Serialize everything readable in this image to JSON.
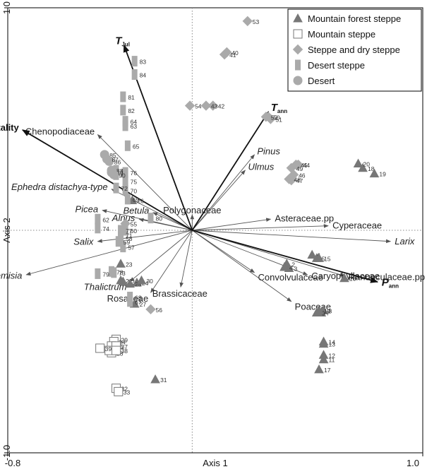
{
  "chart_data": {
    "type": "scatter",
    "subtype": "ordination-biplot",
    "xlabel": "Axis 1",
    "ylabel": "Axis 2",
    "xlim": [
      -0.8,
      1.0
    ],
    "ylim": [
      -1.0,
      1.0
    ],
    "x_ticks": [
      {
        "v": -0.8,
        "label": "-0.8"
      },
      {
        "v": 1.0,
        "label": "1.0"
      }
    ],
    "y_ticks": [
      {
        "v": 1.0,
        "label": "1.0"
      },
      {
        "v": -1.0,
        "label": "-1.0"
      }
    ],
    "grid": false,
    "zero_lines": true,
    "legend_position": "top-right",
    "legend": [
      {
        "group": "mfs",
        "label": "Mountain forest steppe"
      },
      {
        "group": "ms",
        "label": "Mountain steppe"
      },
      {
        "group": "sds",
        "label": "Steppe and dry steppe"
      },
      {
        "group": "ds",
        "label": "Desert steppe"
      },
      {
        "group": "d",
        "label": "Desert"
      }
    ],
    "groups": {
      "mfs": {
        "marker": "triangle",
        "fill": "#777777",
        "stroke": "#777777"
      },
      "ms": {
        "marker": "square-open",
        "fill": "#ffffff",
        "stroke": "#777777"
      },
      "sds": {
        "marker": "diamond",
        "fill": "#aaaaaa",
        "stroke": "#aaaaaa"
      },
      "ds": {
        "marker": "rect",
        "fill": "#aaaaaa",
        "stroke": "#aaaaaa"
      },
      "d": {
        "marker": "circle",
        "fill": "#aaaaaa",
        "stroke": "#aaaaaa"
      }
    },
    "environment_vectors": [
      {
        "name": "T",
        "sub": "Jul",
        "x": -0.296,
        "y": 0.832
      },
      {
        "name": "continentality",
        "sub": "",
        "x": -0.736,
        "y": 0.451
      },
      {
        "name": "T",
        "sub": "ann",
        "x": 0.331,
        "y": 0.533
      },
      {
        "name": "P",
        "sub": "ann",
        "x": 0.804,
        "y": -0.232
      }
    ],
    "taxon_vectors": [
      {
        "name": "Chenopodiaceae",
        "x": -0.41,
        "y": 0.43
      },
      {
        "name": "Ephedra distachya-type",
        "x": -0.35,
        "y": 0.185
      },
      {
        "name": "Picea",
        "x": -0.39,
        "y": 0.09
      },
      {
        "name": "Betula",
        "x": -0.17,
        "y": 0.08
      },
      {
        "name": "Alnus",
        "x": -0.23,
        "y": 0.05
      },
      {
        "name": "Salix",
        "x": -0.41,
        "y": -0.05
      },
      {
        "name": "Artemisia",
        "x": -0.72,
        "y": -0.2
      },
      {
        "name": "Thalictrum",
        "x": -0.27,
        "y": -0.23
      },
      {
        "name": "Rosaceae",
        "x": -0.18,
        "y": -0.28
      },
      {
        "name": "Brassicaceae",
        "x": -0.05,
        "y": -0.255
      },
      {
        "name": "Polygonaceae",
        "x": 0.0,
        "y": 0.07
      },
      {
        "name": "Pinus",
        "x": 0.27,
        "y": 0.34
      },
      {
        "name": "Ulmus",
        "x": 0.23,
        "y": 0.27
      },
      {
        "name": "Asteraceae.pp",
        "x": 0.34,
        "y": 0.05
      },
      {
        "name": "Cyperaceae",
        "x": 0.59,
        "y": 0.02
      },
      {
        "name": "Larix",
        "x": 0.86,
        "y": -0.05
      },
      {
        "name": "Ranunculaceae.pp",
        "x": 0.66,
        "y": -0.205
      },
      {
        "name": "Caryophyllaceae",
        "x": 0.5,
        "y": -0.2
      },
      {
        "name": "Convolvulaceae",
        "x": 0.27,
        "y": -0.19
      },
      {
        "name": "Poaceae",
        "x": 0.43,
        "y": -0.32
      }
    ],
    "samples": [
      {
        "id": "2",
        "group": "mfs",
        "x": 0.41,
        "y": -0.15
      },
      {
        "id": "3",
        "group": "mfs",
        "x": 0.42,
        "y": -0.17
      },
      {
        "id": "4",
        "group": "mfs",
        "x": 0.4,
        "y": -0.165
      },
      {
        "id": "5",
        "group": "mfs",
        "x": 0.54,
        "y": -0.125
      },
      {
        "id": "6",
        "group": "mfs",
        "x": 0.52,
        "y": -0.11
      },
      {
        "id": "7",
        "group": "mfs",
        "x": 0.56,
        "y": -0.37
      },
      {
        "id": "8",
        "group": "mfs",
        "x": 0.57,
        "y": -0.36
      },
      {
        "id": "9",
        "group": "mfs",
        "x": 0.54,
        "y": -0.37
      },
      {
        "id": "10",
        "group": "mfs",
        "x": 0.55,
        "y": -0.36
      },
      {
        "id": "11",
        "group": "mfs",
        "x": 0.57,
        "y": -0.58
      },
      {
        "id": "12",
        "group": "mfs",
        "x": 0.57,
        "y": -0.56
      },
      {
        "id": "13",
        "group": "mfs",
        "x": 0.57,
        "y": -0.51
      },
      {
        "id": "14",
        "group": "mfs",
        "x": 0.57,
        "y": -0.5
      },
      {
        "id": "15",
        "group": "mfs",
        "x": 0.55,
        "y": -0.125
      },
      {
        "id": "16",
        "group": "mfs",
        "x": 0.66,
        "y": -0.215
      },
      {
        "id": "17",
        "group": "mfs",
        "x": 0.55,
        "y": -0.625
      },
      {
        "id": "18",
        "group": "mfs",
        "x": 0.74,
        "y": 0.28
      },
      {
        "id": "19",
        "group": "mfs",
        "x": 0.79,
        "y": 0.255
      },
      {
        "id": "20",
        "group": "mfs",
        "x": 0.72,
        "y": 0.3
      },
      {
        "id": "21",
        "group": "mfs",
        "x": -0.31,
        "y": -0.225
      },
      {
        "id": "22",
        "group": "mfs",
        "x": -0.3,
        "y": -0.23
      },
      {
        "id": "23",
        "group": "mfs",
        "x": -0.31,
        "y": -0.15
      },
      {
        "id": "24",
        "group": "mfs",
        "x": -0.24,
        "y": -0.235
      },
      {
        "id": "25",
        "group": "mfs",
        "x": -0.27,
        "y": -0.24
      },
      {
        "id": "26",
        "group": "mfs",
        "x": -0.26,
        "y": 0.135
      },
      {
        "id": "27",
        "group": "mfs",
        "x": -0.25,
        "y": -0.33
      },
      {
        "id": "30",
        "group": "mfs",
        "x": -0.22,
        "y": -0.225
      },
      {
        "id": "31",
        "group": "mfs",
        "x": -0.16,
        "y": -0.67
      },
      {
        "id": "28",
        "group": "ms",
        "x": -0.35,
        "y": -0.55
      },
      {
        "id": "29",
        "group": "ms",
        "x": -0.33,
        "y": -0.49
      },
      {
        "id": "32",
        "group": "ms",
        "x": -0.33,
        "y": -0.71
      },
      {
        "id": "33",
        "group": "ms",
        "x": -0.32,
        "y": -0.725
      },
      {
        "id": "34",
        "group": "ms",
        "x": -0.34,
        "y": -0.5
      },
      {
        "id": "35",
        "group": "ms",
        "x": -0.35,
        "y": -0.52
      },
      {
        "id": "36",
        "group": "ms",
        "x": -0.36,
        "y": -0.54
      },
      {
        "id": "37",
        "group": "ms",
        "x": -0.33,
        "y": -0.52
      },
      {
        "id": "38",
        "group": "ms",
        "x": -0.33,
        "y": -0.54
      },
      {
        "id": "39",
        "group": "ms",
        "x": -0.4,
        "y": -0.53
      },
      {
        "id": "40",
        "group": "sds",
        "x": 0.15,
        "y": 0.8
      },
      {
        "id": "41",
        "group": "sds",
        "x": 0.14,
        "y": 0.79
      },
      {
        "id": "42",
        "group": "sds",
        "x": 0.09,
        "y": 0.56
      },
      {
        "id": "43",
        "group": "sds",
        "x": 0.06,
        "y": 0.56
      },
      {
        "id": "44",
        "group": "sds",
        "x": 0.46,
        "y": 0.295
      },
      {
        "id": "45",
        "group": "sds",
        "x": 0.45,
        "y": 0.295
      },
      {
        "id": "46",
        "group": "sds",
        "x": 0.44,
        "y": 0.25
      },
      {
        "id": "47",
        "group": "sds",
        "x": 0.43,
        "y": 0.225
      },
      {
        "id": "48",
        "group": "sds",
        "x": 0.42,
        "y": 0.23
      },
      {
        "id": "49",
        "group": "sds",
        "x": 0.43,
        "y": 0.28
      },
      {
        "id": "50",
        "group": "sds",
        "x": 0.33,
        "y": 0.51
      },
      {
        "id": "51",
        "group": "sds",
        "x": 0.34,
        "y": 0.5
      },
      {
        "id": "52",
        "group": "sds",
        "x": 0.32,
        "y": 0.51
      },
      {
        "id": "53",
        "group": "sds",
        "x": 0.24,
        "y": 0.94
      },
      {
        "id": "54",
        "group": "sds",
        "x": -0.01,
        "y": 0.56
      },
      {
        "id": "55",
        "group": "sds",
        "x": -0.29,
        "y": 0.03
      },
      {
        "id": "56",
        "group": "sds",
        "x": -0.18,
        "y": -0.355
      },
      {
        "id": "57",
        "group": "ds",
        "x": -0.3,
        "y": -0.075
      },
      {
        "id": "58",
        "group": "ds",
        "x": -0.31,
        "y": -0.035
      },
      {
        "id": "59",
        "group": "ds",
        "x": -0.32,
        "y": -0.05
      },
      {
        "id": "60",
        "group": "ds",
        "x": -0.29,
        "y": 0.0
      },
      {
        "id": "61",
        "group": "ds",
        "x": -0.33,
        "y": 0.25
      },
      {
        "id": "62",
        "group": "ds",
        "x": -0.41,
        "y": 0.05
      },
      {
        "id": "63",
        "group": "ds",
        "x": -0.29,
        "y": 0.47
      },
      {
        "id": "64",
        "group": "ds",
        "x": -0.29,
        "y": 0.49
      },
      {
        "id": "65",
        "group": "ds",
        "x": -0.28,
        "y": 0.38
      },
      {
        "id": "66",
        "group": "ds",
        "x": -0.33,
        "y": 0.27
      },
      {
        "id": "67",
        "group": "ds",
        "x": -0.27,
        "y": -0.32
      },
      {
        "id": "68",
        "group": "ds",
        "x": -0.27,
        "y": -0.3
      },
      {
        "id": "69",
        "group": "ds",
        "x": -0.28,
        "y": 0.14
      },
      {
        "id": "70",
        "group": "ds",
        "x": -0.29,
        "y": 0.18
      },
      {
        "id": "71",
        "group": "ds",
        "x": -0.31,
        "y": -0.02
      },
      {
        "id": "72",
        "group": "ds",
        "x": -0.33,
        "y": 0.19
      },
      {
        "id": "73",
        "group": "ds",
        "x": -0.34,
        "y": -0.19
      },
      {
        "id": "74",
        "group": "ds",
        "x": -0.41,
        "y": 0.01
      },
      {
        "id": "75",
        "group": "ds",
        "x": -0.29,
        "y": 0.22
      },
      {
        "id": "76",
        "group": "ds",
        "x": -0.29,
        "y": 0.26
      },
      {
        "id": "77",
        "group": "ds",
        "x": -0.31,
        "y": 0.0
      },
      {
        "id": "78",
        "group": "ds",
        "x": -0.35,
        "y": -0.185
      },
      {
        "id": "79",
        "group": "ds",
        "x": -0.41,
        "y": -0.195
      },
      {
        "id": "80",
        "group": "ds",
        "x": -0.18,
        "y": 0.055
      },
      {
        "id": "81",
        "group": "ds",
        "x": -0.3,
        "y": 0.6
      },
      {
        "id": "82",
        "group": "ds",
        "x": -0.3,
        "y": 0.54
      },
      {
        "id": "83",
        "group": "ds",
        "x": -0.25,
        "y": 0.76
      },
      {
        "id": "84",
        "group": "ds",
        "x": -0.25,
        "y": 0.7
      },
      {
        "id": "85",
        "group": "d",
        "x": -0.38,
        "y": 0.34
      },
      {
        "id": "86",
        "group": "d",
        "x": -0.36,
        "y": 0.31
      },
      {
        "id": "87",
        "group": "d",
        "x": -0.37,
        "y": 0.32
      },
      {
        "id": "88",
        "group": "d",
        "x": -0.35,
        "y": 0.27
      },
      {
        "id": "89",
        "group": "d",
        "x": -0.35,
        "y": 0.26
      },
      {
        "id": "90",
        "group": "d",
        "x": -0.34,
        "y": 0.25
      }
    ]
  }
}
